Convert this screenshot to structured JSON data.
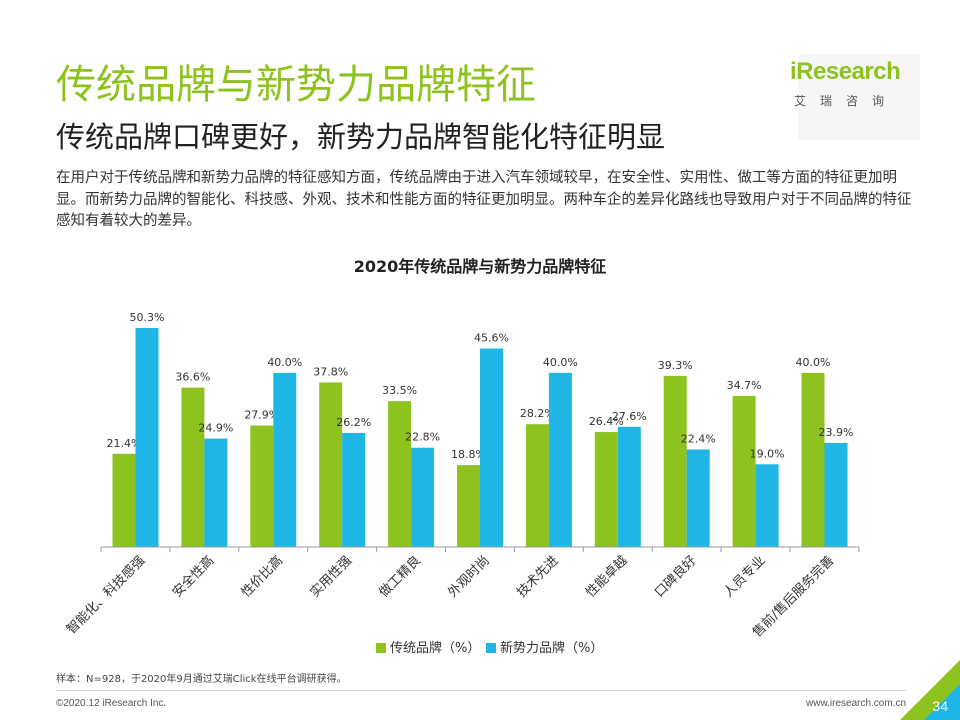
{
  "header": {
    "title": "传统品牌与新势力品牌特征",
    "subtitle": "传统品牌口碑更好，新势力品牌智能化特征明显",
    "description": "在用户对于传统品牌和新势力品牌的特征感知方面，传统品牌由于进入汽车领域较早，在安全性、实用性、做工等方面的特征更加明显。而新势力品牌的智能化、科技感、外观、技术和性能方面的特征更加明显。两种车企的差异化路线也导致用户对于不同品牌的特征感知有着较大的差异。"
  },
  "logo": {
    "brand": "iResearch",
    "cn": "艾瑞咨询"
  },
  "colors": {
    "accent": "#8dc21f",
    "traditional": "#8dc21f",
    "new_force": "#1fb6e6"
  },
  "chart_data": {
    "type": "bar",
    "title": "2020年传统品牌与新势力品牌特征",
    "categories": [
      "智能化、科技感强",
      "安全性高",
      "性价比高",
      "实用性强",
      "做工精良",
      "外观时尚",
      "技术先进",
      "性能卓越",
      "口碑良好",
      "人员专业",
      "售前/售后服务完善"
    ],
    "series": [
      {
        "name": "传统品牌（%）",
        "color": "#8dc21f",
        "values": [
          21.4,
          36.6,
          27.9,
          37.8,
          33.5,
          18.8,
          28.2,
          26.4,
          39.3,
          34.7,
          40.0
        ]
      },
      {
        "name": "新势力品牌（%）",
        "color": "#1fb6e6",
        "values": [
          50.3,
          24.9,
          40.0,
          26.2,
          22.8,
          45.6,
          40.0,
          27.6,
          22.4,
          19.0,
          23.9
        ]
      }
    ],
    "ylim": [
      0,
      50.3
    ],
    "xlabel": "",
    "ylabel": "",
    "legend": "bottom"
  },
  "footer": {
    "note": "样本：N=928，于2020年9月通过艾瑞Click在线平台调研获得。",
    "copyright": "©2020.12 iResearch Inc.",
    "site": "www.iresearch.com.cn",
    "page": "34"
  }
}
